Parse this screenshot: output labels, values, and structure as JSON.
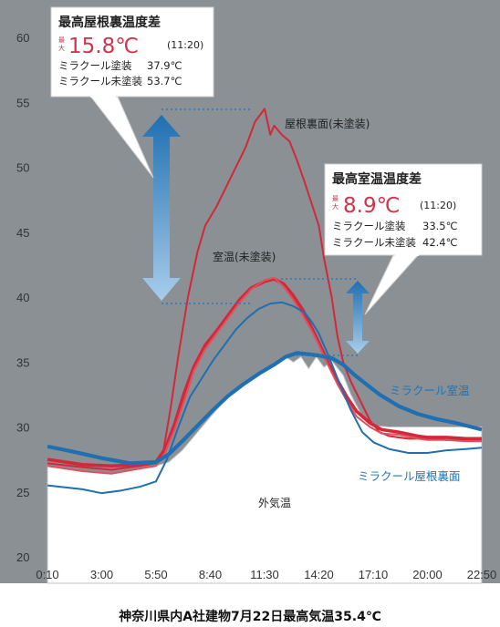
{
  "chart_data": {
    "type": "line",
    "ylim": [
      20,
      60
    ],
    "yticks": [
      20,
      25,
      30,
      35,
      40,
      45,
      50,
      55,
      60
    ],
    "xticks": [
      "0:10",
      "3:00",
      "5:50",
      "8:40",
      "11:30",
      "14:20",
      "17:10",
      "20:00",
      "22:50"
    ],
    "caption": "神奈川県内A社建物7月22日最高気温35.4℃",
    "series": [
      {
        "name": "屋根裏面(未塗装)",
        "color": "#d3283a",
        "points": [
          [
            0.17,
            27.2
          ],
          [
            2,
            26.9
          ],
          [
            3.5,
            26.7
          ],
          [
            5,
            27.0
          ],
          [
            5.83,
            27.2
          ],
          [
            6.2,
            28.0
          ],
          [
            6.6,
            31.5
          ],
          [
            7,
            35.5
          ],
          [
            7.5,
            40
          ],
          [
            8,
            43.5
          ],
          [
            8.4,
            45.5
          ],
          [
            9,
            47
          ],
          [
            9.5,
            48.5
          ],
          [
            10,
            50
          ],
          [
            10.5,
            51.5
          ],
          [
            11,
            53.5
          ],
          [
            11.5,
            54.5
          ],
          [
            11.8,
            52.5
          ],
          [
            12,
            53.2
          ],
          [
            12.4,
            52.5
          ],
          [
            12.8,
            52
          ],
          [
            13.2,
            50.5
          ],
          [
            13.6,
            48.8
          ],
          [
            14,
            47
          ],
          [
            14.33,
            45.5
          ],
          [
            14.6,
            43
          ],
          [
            15,
            40
          ],
          [
            15.3,
            37
          ],
          [
            15.6,
            35
          ],
          [
            16,
            33.5
          ],
          [
            16.5,
            32
          ],
          [
            17,
            30.5
          ],
          [
            17.5,
            29.6
          ],
          [
            18,
            29.3
          ],
          [
            19,
            29.1
          ],
          [
            20,
            29.1
          ],
          [
            21,
            29.0
          ],
          [
            22,
            29.0
          ],
          [
            22.83,
            28.9
          ]
        ]
      },
      {
        "name": "室温(未塗装)",
        "color": "#d3283a",
        "points": [
          [
            0.17,
            27.5
          ],
          [
            2,
            27.1
          ],
          [
            3.5,
            27.0
          ],
          [
            5,
            27.1
          ],
          [
            5.83,
            27.3
          ],
          [
            6.3,
            28.3
          ],
          [
            6.8,
            30.2
          ],
          [
            7.3,
            32.6
          ],
          [
            7.8,
            34.6
          ],
          [
            8.4,
            36.3
          ],
          [
            9,
            37.4
          ],
          [
            9.6,
            38.6
          ],
          [
            10.2,
            39.8
          ],
          [
            10.8,
            40.7
          ],
          [
            11.5,
            41.2
          ],
          [
            12,
            41.4
          ],
          [
            12.5,
            41.0
          ],
          [
            13,
            40.1
          ],
          [
            13.5,
            39.0
          ],
          [
            14,
            37.5
          ],
          [
            14.33,
            36.5
          ],
          [
            14.8,
            35
          ],
          [
            15.3,
            33.6
          ],
          [
            15.8,
            32.3
          ],
          [
            16.3,
            31.2
          ],
          [
            17,
            30.3
          ],
          [
            17.6,
            29.8
          ],
          [
            18.5,
            29.6
          ],
          [
            19.5,
            29.3
          ],
          [
            20,
            29.2
          ],
          [
            21,
            29.2
          ],
          [
            22,
            29.1
          ],
          [
            22.83,
            29.1
          ]
        ]
      },
      {
        "name": "屋根裏面(未塗装)2",
        "color": "#e0505e",
        "points": [
          [
            0.17,
            27.0
          ],
          [
            2,
            26.6
          ],
          [
            3.5,
            26.4
          ],
          [
            5,
            26.8
          ],
          [
            5.83,
            27.0
          ],
          [
            6.3,
            28.0
          ],
          [
            6.8,
            29.8
          ],
          [
            7.3,
            32.0
          ],
          [
            7.8,
            34.3
          ],
          [
            8.4,
            36.0
          ],
          [
            9,
            37.2
          ],
          [
            9.6,
            38.4
          ],
          [
            10.2,
            39.6
          ],
          [
            10.8,
            40.6
          ],
          [
            11.5,
            41.3
          ],
          [
            12,
            41.5
          ],
          [
            12.5,
            40.8
          ],
          [
            13,
            39.8
          ],
          [
            13.5,
            38.6
          ],
          [
            14,
            37.3
          ],
          [
            14.33,
            36.3
          ],
          [
            14.8,
            34.8
          ],
          [
            15.3,
            33.3
          ],
          [
            15.8,
            32.0
          ],
          [
            16.3,
            30.8
          ],
          [
            17,
            30.0
          ],
          [
            17.6,
            29.5
          ],
          [
            18.5,
            29.4
          ],
          [
            19.5,
            29.1
          ],
          [
            20,
            29.0
          ],
          [
            21,
            29.0
          ],
          [
            22,
            28.9
          ],
          [
            22.83,
            28.9
          ]
        ]
      },
      {
        "name": "ミラクール屋根裏面",
        "color": "#1f6fb2",
        "points": [
          [
            0.17,
            25.5
          ],
          [
            2,
            25.2
          ],
          [
            3,
            24.9
          ],
          [
            4,
            25.1
          ],
          [
            5,
            25.4
          ],
          [
            5.83,
            25.8
          ],
          [
            6.4,
            27.5
          ],
          [
            7,
            30
          ],
          [
            7.6,
            32.3
          ],
          [
            8.2,
            33.7
          ],
          [
            8.8,
            35.1
          ],
          [
            9.4,
            36.3
          ],
          [
            10,
            37.5
          ],
          [
            10.6,
            38.4
          ],
          [
            11.2,
            39.1
          ],
          [
            11.8,
            39.5
          ],
          [
            12.4,
            39.6
          ],
          [
            13,
            39.3
          ],
          [
            13.6,
            38.8
          ],
          [
            14,
            38.0
          ],
          [
            14.33,
            37.2
          ],
          [
            14.8,
            35.6
          ],
          [
            15.4,
            33.4
          ],
          [
            16,
            31.3
          ],
          [
            16.6,
            29.6
          ],
          [
            17.2,
            28.8
          ],
          [
            18,
            28.3
          ],
          [
            19,
            28.0
          ],
          [
            20,
            28.0
          ],
          [
            21,
            28.2
          ],
          [
            22,
            28.3
          ],
          [
            22.83,
            28.4
          ]
        ]
      },
      {
        "name": "ミラクール室温",
        "color": "#1f6fb2",
        "points": [
          [
            0.17,
            28.5
          ],
          [
            1.5,
            28.1
          ],
          [
            3,
            27.6
          ],
          [
            4.5,
            27.2
          ],
          [
            5.83,
            27.3
          ],
          [
            6.5,
            27.9
          ],
          [
            7.2,
            28.9
          ],
          [
            8,
            30.1
          ],
          [
            8.8,
            31.3
          ],
          [
            9.6,
            32.4
          ],
          [
            10.4,
            33.3
          ],
          [
            11.2,
            34.1
          ],
          [
            12,
            34.8
          ],
          [
            12.6,
            35.4
          ],
          [
            13.2,
            35.7
          ],
          [
            13.8,
            35.6
          ],
          [
            14.33,
            35.5
          ],
          [
            15,
            35.3
          ],
          [
            15.6,
            34.8
          ],
          [
            16.2,
            34.0
          ],
          [
            16.8,
            33.3
          ],
          [
            17.5,
            32.5
          ],
          [
            18.5,
            31.6
          ],
          [
            19.5,
            31.0
          ],
          [
            20.5,
            30.6
          ],
          [
            21.5,
            30.3
          ],
          [
            22.83,
            29.8
          ]
        ]
      }
    ],
    "outside_air": {
      "name": "外気温",
      "points": [
        [
          0.17,
          27.0
        ],
        [
          2,
          26.6
        ],
        [
          3.5,
          26.4
        ],
        [
          5,
          26.8
        ],
        [
          5.83,
          27.0
        ],
        [
          6.5,
          27.3
        ],
        [
          7.2,
          28.2
        ],
        [
          8,
          29.6
        ],
        [
          8.8,
          31.0
        ],
        [
          9.6,
          32.3
        ],
        [
          10.4,
          33.3
        ],
        [
          11.2,
          34.1
        ],
        [
          12,
          34.8
        ],
        [
          12.6,
          35.4
        ],
        [
          13,
          35.0
        ],
        [
          13.4,
          35.4
        ],
        [
          13.8,
          34.5
        ],
        [
          14.2,
          35.4
        ],
        [
          14.6,
          34.6
        ],
        [
          15,
          35.1
        ],
        [
          15.6,
          34.0
        ],
        [
          16,
          32.5
        ],
        [
          16.6,
          30.8
        ],
        [
          17.2,
          30.1
        ],
        [
          18,
          30.0
        ],
        [
          19,
          30.0
        ],
        [
          20,
          30.0
        ],
        [
          21,
          30.0
        ],
        [
          22,
          30.0
        ],
        [
          22.83,
          30.0
        ]
      ]
    },
    "annotations": {
      "roof_label": "屋根裏面(未塗装)",
      "room_label": "室温(未塗装)",
      "miracool_room_label": "ミラクール室温",
      "miracool_roof_label": "ミラクール屋根裏面",
      "outside_label": "外気温"
    }
  },
  "box1": {
    "title": "最高屋根裏温度差",
    "max_small_1": "最",
    "max_small_2": "大",
    "value": "15.8℃",
    "time": "(11:20)",
    "row1_label": "ミラクール塗装",
    "row1_value": "37.9℃",
    "row2_label": "ミラクール未塗装",
    "row2_value": "53.7℃"
  },
  "box2": {
    "title": "最高室温温度差",
    "max_small_1": "最",
    "max_small_2": "大",
    "value": "8.9℃",
    "time": "(11:20)",
    "row1_label": "ミラクール塗装",
    "row1_value": "33.5℃",
    "row2_label": "ミラクール未塗装",
    "row2_value": "42.4℃"
  },
  "colors": {
    "plot_bg": "#8a9094",
    "outside_fill": "#ffffff",
    "red": "#d3283a",
    "blue": "#1f6fb2",
    "arrow_blue": "#2a78bd"
  }
}
